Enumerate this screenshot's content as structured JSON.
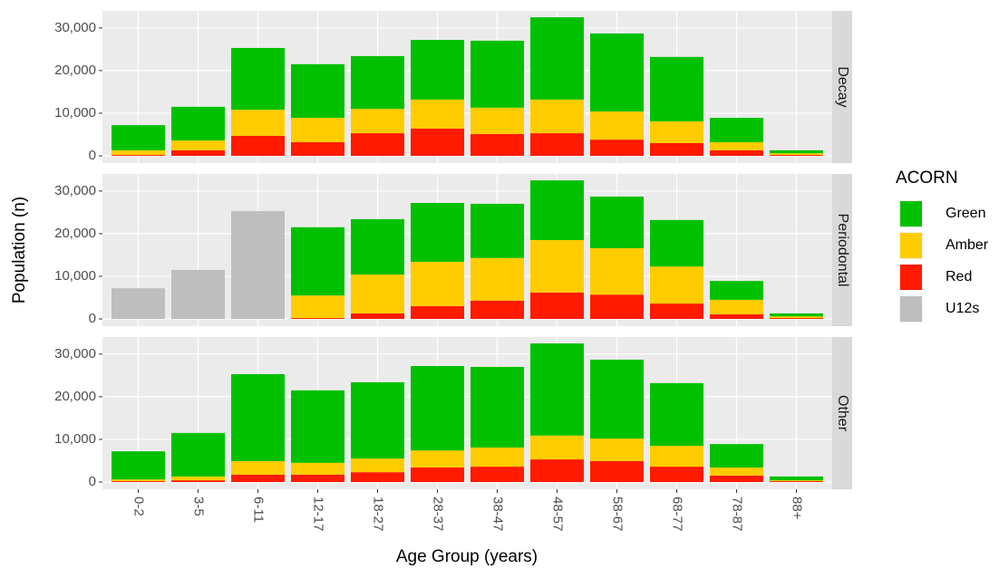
{
  "chart_data": {
    "type": "bar",
    "stacked": true,
    "x_label": "Age Group (years)",
    "y_label": "Population (n)",
    "legend_title": "ACORN",
    "categories": [
      "0-2",
      "3-5",
      "6-11",
      "12-17",
      "18-27",
      "28-37",
      "38-47",
      "48-57",
      "58-67",
      "68-77",
      "78-87",
      "88+"
    ],
    "ylim": [
      -1700,
      34000
    ],
    "yticks": [
      0,
      {
        "value": 10000,
        "label": "10,000"
      },
      {
        "value": 20000,
        "label": "20,000"
      },
      {
        "value": 30000,
        "label": "30,000"
      }
    ],
    "grid": true,
    "facets": [
      {
        "label": "Decay",
        "series": [
          {
            "name": "Green",
            "color": "#00c000",
            "values": [
              5900,
              7900,
              14500,
              12600,
              12400,
              14000,
              15700,
              19300,
              18300,
              15100,
              5700,
              700
            ]
          },
          {
            "name": "Amber",
            "color": "#ffcc00",
            "values": [
              1100,
              2300,
              6100,
              5700,
              5700,
              6800,
              6200,
              7900,
              6600,
              5100,
              1900,
              400
            ]
          },
          {
            "name": "Red",
            "color": "#ff1a00",
            "values": [
              200,
              1300,
              4700,
              3200,
              5300,
              6400,
              5100,
              5300,
              3800,
              3000,
              1300,
              200
            ]
          },
          {
            "name": "U12s",
            "color": "#bebebe",
            "values": [
              null,
              null,
              null,
              null,
              null,
              null,
              null,
              null,
              null,
              null,
              null,
              null
            ]
          }
        ]
      },
      {
        "label": "Periodontal",
        "series": [
          {
            "name": "Green",
            "color": "#00c000",
            "values": [
              null,
              null,
              null,
              16000,
              13000,
              13800,
              12700,
              14000,
              12100,
              10900,
              4400,
              700
            ]
          },
          {
            "name": "Amber",
            "color": "#ffcc00",
            "values": [
              null,
              null,
              null,
              5300,
              9100,
              10400,
              10000,
              12300,
              10900,
              8700,
              3400,
              400
            ]
          },
          {
            "name": "Red",
            "color": "#ff1a00",
            "values": [
              null,
              null,
              null,
              200,
              1300,
              3000,
              4300,
              6200,
              5700,
              3600,
              1100,
              200
            ]
          },
          {
            "name": "U12s",
            "color": "#bebebe",
            "values": [
              7200,
              11500,
              25300,
              null,
              null,
              null,
              null,
              null,
              null,
              null,
              null,
              null
            ]
          }
        ]
      },
      {
        "label": "Other",
        "series": [
          {
            "name": "Green",
            "color": "#00c000",
            "values": [
              6600,
              10200,
              20400,
              17000,
              17900,
              19800,
              18900,
              21600,
              18500,
              14700,
              5500,
              900
            ]
          },
          {
            "name": "Amber",
            "color": "#ffcc00",
            "values": [
              400,
              900,
              3200,
              2800,
              3200,
              4000,
              4500,
              5600,
              5300,
              4900,
              1900,
              200
            ]
          },
          {
            "name": "Red",
            "color": "#ff1a00",
            "values": [
              200,
              400,
              1700,
              1700,
              2300,
              3400,
              3600,
              5300,
              4900,
              3600,
              1500,
              200
            ]
          },
          {
            "name": "U12s",
            "color": "#bebebe",
            "values": [
              null,
              null,
              null,
              null,
              null,
              null,
              null,
              null,
              null,
              null,
              null,
              null
            ]
          }
        ]
      }
    ]
  }
}
